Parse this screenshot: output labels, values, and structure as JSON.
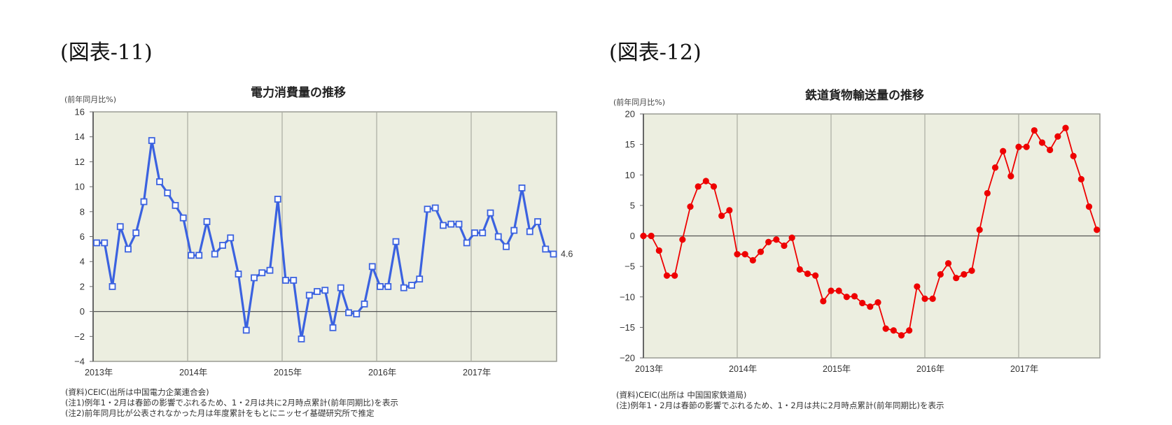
{
  "figures": [
    {
      "label": "(図表-11)",
      "title": "電力消費量の推移",
      "unit": "(前年同月比%)",
      "end_label": "4.6",
      "notes": [
        "(資料)CEIC(出所は中国電力企業連合会)",
        "(注1)例年1・2月は春節の影響でぶれるため、1・2月は共に2月時点累計(前年同期比)を表示",
        "(注2)前年同月比が公表されなかった月は年度累計をもとにニッセイ基礎研究所で推定"
      ]
    },
    {
      "label": "(図表-12)",
      "title": "鉄道貨物輸送量の推移",
      "unit": "(前年同月比%)",
      "notes": [
        "(資料)CEIC(出所は 中国国家鉄道局)",
        "(注)例年1・2月は春節の影響でぶれるため、1・2月は共に2月時点累計(前年同期比)を表示"
      ]
    }
  ],
  "chart_data": [
    {
      "type": "line",
      "title": "電力消費量の推移",
      "ylabel": "(前年同月比%)",
      "xlabel": "",
      "ylim": [
        -4,
        16
      ],
      "yticks": [
        16,
        14,
        12,
        10,
        8,
        6,
        4,
        2,
        0,
        -2,
        -4
      ],
      "ytick_labels": [
        "16",
        "14",
        "12",
        "10",
        "8",
        "6",
        "4",
        "2",
        "0",
        "−2",
        "−4"
      ],
      "xtick_labels": [
        "2013年",
        "2014年",
        "2015年",
        "2016年",
        "2017年"
      ],
      "x_start": "2013-01",
      "x_end": "2017-11",
      "grid": "vertical year lines",
      "marker": "open-square",
      "color": "#3b62e0",
      "end_annotation": "4.6",
      "series": [
        {
          "name": "電力消費量(前年同月比%)",
          "values": [
            5.5,
            5.5,
            2.0,
            6.8,
            5.0,
            6.3,
            8.8,
            13.7,
            10.4,
            9.5,
            8.5,
            7.5,
            4.5,
            4.5,
            7.2,
            4.6,
            5.3,
            5.9,
            3.0,
            -1.5,
            2.7,
            3.1,
            3.3,
            9.0,
            2.5,
            2.5,
            -2.2,
            1.3,
            1.6,
            1.7,
            -1.3,
            1.9,
            -0.1,
            -0.2,
            0.6,
            3.6,
            2.0,
            2.0,
            5.6,
            1.9,
            2.1,
            2.6,
            8.2,
            8.3,
            6.9,
            7.0,
            7.0,
            5.5,
            6.3,
            6.3,
            7.9,
            6.0,
            5.2,
            6.5,
            9.9,
            6.4,
            7.2,
            5.0,
            4.6
          ]
        }
      ]
    },
    {
      "type": "line",
      "title": "鉄道貨物輸送量の推移",
      "ylabel": "(前年同月比%)",
      "xlabel": "",
      "ylim": [
        -20,
        20
      ],
      "yticks": [
        20,
        15,
        10,
        5,
        0,
        -5,
        -10,
        -15,
        -20
      ],
      "ytick_labels": [
        "20",
        "15",
        "10",
        "5",
        "0",
        "−5",
        "−10",
        "−15",
        "−20"
      ],
      "xtick_labels": [
        "2013年",
        "2014年",
        "2015年",
        "2016年",
        "2017年"
      ],
      "x_start": "2013-01",
      "x_end": "2017-11",
      "grid": "vertical year lines",
      "marker": "filled-circle",
      "color": "#ee0000",
      "series": [
        {
          "name": "鉄道貨物輸送量(前年同月比%)",
          "values": [
            0.0,
            0.0,
            -2.4,
            -6.5,
            -6.5,
            -0.6,
            4.8,
            8.1,
            9.0,
            8.1,
            3.3,
            4.2,
            -3.0,
            -3.0,
            -4.0,
            -2.6,
            -1.0,
            -0.6,
            -1.6,
            -0.3,
            -5.5,
            -6.2,
            -6.5,
            -10.7,
            -9.0,
            -9.0,
            -10.0,
            -9.9,
            -11.0,
            -11.6,
            -10.9,
            -15.2,
            -15.5,
            -16.3,
            -15.5,
            -8.3,
            -10.3,
            -10.3,
            -6.3,
            -4.5,
            -6.9,
            -6.3,
            -5.7,
            1.0,
            7.0,
            11.2,
            13.9,
            9.8,
            14.6,
            14.6,
            17.3,
            15.3,
            14.1,
            16.3,
            17.7,
            13.1,
            9.3,
            4.8,
            1.0
          ]
        }
      ]
    }
  ]
}
